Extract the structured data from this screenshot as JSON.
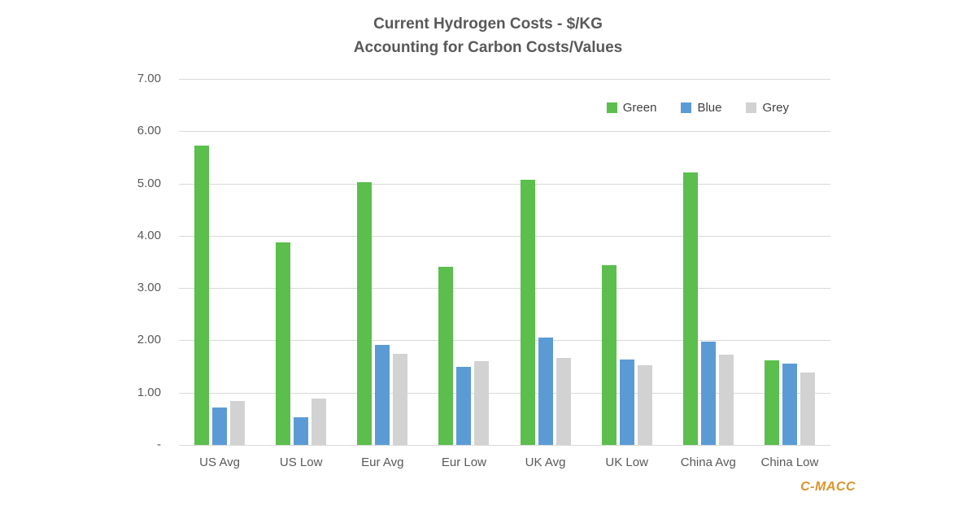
{
  "chart_data": {
    "type": "bar",
    "title_line1": "Current Hydrogen Costs - $/KG",
    "title_line2": "Accounting for Carbon Costs/Values",
    "categories": [
      "US Avg",
      "US Low",
      "Eur Avg",
      "Eur Low",
      "UK Avg",
      "UK Low",
      "China Avg",
      "China Low"
    ],
    "series": [
      {
        "name": "Green",
        "color": "#5BBE4D",
        "values": [
          5.72,
          3.87,
          5.02,
          3.4,
          5.07,
          3.44,
          5.21,
          1.62
        ]
      },
      {
        "name": "Blue",
        "color": "#5B9BD5",
        "values": [
          0.71,
          0.53,
          1.92,
          1.5,
          2.06,
          1.63,
          1.97,
          1.55
        ]
      },
      {
        "name": "Grey",
        "color": "#D2D2D2",
        "values": [
          0.84,
          0.89,
          1.75,
          1.6,
          1.66,
          1.52,
          1.73,
          1.39
        ]
      }
    ],
    "ylim": [
      0,
      7
    ],
    "y_ticks": [
      "7.00",
      "6.00",
      "5.00",
      "4.00",
      "3.00",
      "2.00",
      "1.00",
      "-"
    ],
    "grid": true,
    "legend_position": "inside-top-right"
  },
  "brand": {
    "label": "C-MACC",
    "color": "#D9952B"
  },
  "colors": {
    "grid": "#D9D9D9",
    "axis_text": "#595959",
    "background": "#FFFFFF"
  }
}
